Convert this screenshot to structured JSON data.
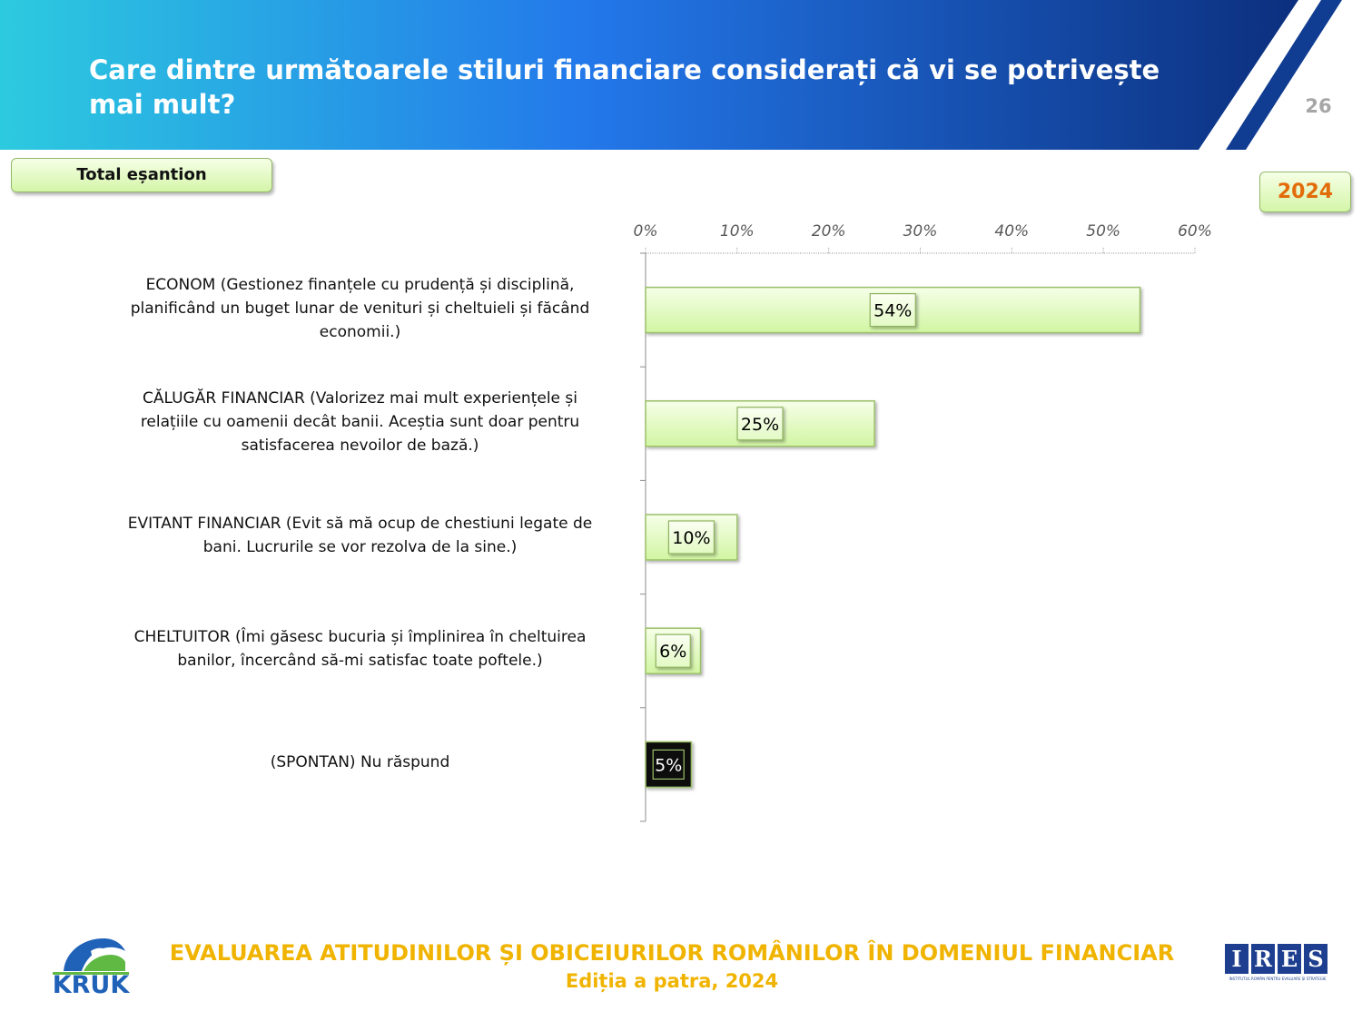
{
  "header": {
    "title": "Care dintre următoarele stiluri financiare considerați că vi se potrivește mai mult?",
    "page_number": "26",
    "colors": {
      "start": "#2cc6de",
      "mid": "#2175e8",
      "end": "#0f3a8e",
      "stripe": "#0f3a8e"
    }
  },
  "sample_label": "Total eșantion",
  "year_label": "2024",
  "chart_data": {
    "type": "bar",
    "orientation": "horizontal",
    "categories": [
      "ECONOM (Gestionez finanțele cu prudență și disciplină, planificând un buget lunar de venituri și cheltuieli și făcând economii.)",
      "CĂLUGĂR FINANCIAR (Valorizez mai mult experiențele și relațiile cu oamenii decât banii. Aceștia sunt doar pentru satisfacerea nevoilor de bază.)",
      "EVITANT FINANCIAR (Evit să mă ocup de chestiuni legate de bani. Lucrurile se vor rezolva de la sine.)",
      "CHELTUITOR (Îmi găsesc bucuria și împlinirea în cheltuirea banilor, încercând să-mi satisfac toate poftele.)",
      "(SPONTAN) Nu răspund"
    ],
    "category_lines": [
      [
        "ECONOM (Gestionez finanțele cu prudență și disciplină,",
        "planificând un buget lunar de venituri și cheltuieli și făcând",
        "economii.)"
      ],
      [
        "CĂLUGĂR FINANCIAR (Valorizez mai mult experiențele și",
        "relațiile cu oamenii decât banii. Aceștia sunt doar pentru",
        "satisfacerea nevoilor de bază.)"
      ],
      [
        "EVITANT FINANCIAR (Evit să mă ocup de chestiuni legate de",
        "bani. Lucrurile se vor rezolva de la sine.)"
      ],
      [
        "CHELTUITOR (Îmi găsesc bucuria și împlinirea în cheltuirea",
        "banilor, încercând să-mi satisfac toate poftele.)"
      ],
      [
        "(SPONTAN) Nu răspund"
      ]
    ],
    "values": [
      54,
      25,
      10,
      6,
      5
    ],
    "value_labels": [
      "54%",
      "25%",
      "10%",
      "6%",
      "5%"
    ],
    "bar_styles": [
      "light",
      "light",
      "light",
      "light",
      "dark"
    ],
    "xlim": [
      0,
      60
    ],
    "x_ticks": [
      0,
      10,
      20,
      30,
      40,
      50,
      60
    ],
    "x_tick_labels": [
      "0%",
      "10%",
      "20%",
      "30%",
      "40%",
      "50%",
      "60%"
    ],
    "axis_position": "top",
    "grid": false,
    "colors": {
      "bar_fill_top": "#f4ffe2",
      "bar_fill_bottom": "#d3f5a5",
      "bar_border": "#9bbf6a",
      "dark_bar": "#0d0d0d",
      "dark_border": "#9bbf6a"
    }
  },
  "footer": {
    "title": "EVALUAREA ATITUDINILOR ȘI OBICEIURILOR ROMÂNILOR ÎN DOMENIUL FINANCIAR",
    "subtitle": "Ediția a patra, 2024",
    "logo_left": "KRUK",
    "logo_right_letters": [
      "I",
      "R",
      "E",
      "S"
    ],
    "logo_right_sub": "INSTITUTUL ROMÂN PENTRU EVALUARE ȘI STRATEGIE"
  }
}
